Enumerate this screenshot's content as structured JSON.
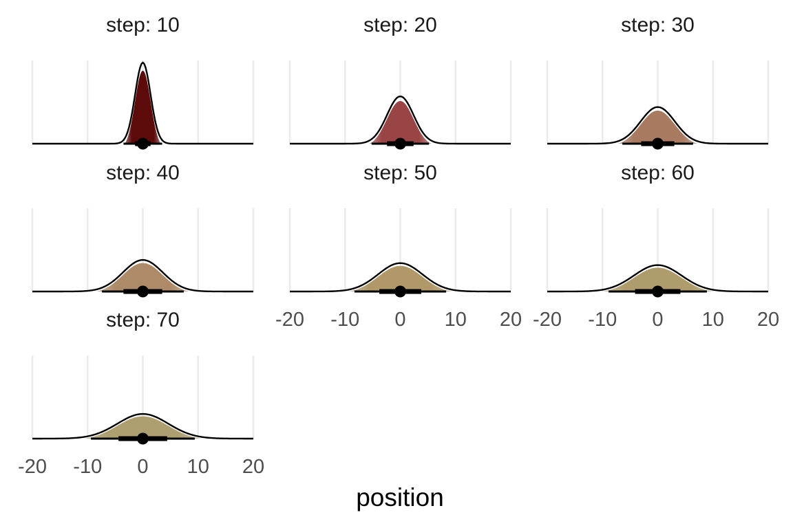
{
  "chart_data": {
    "type": "area",
    "title": "",
    "xlabel": "position",
    "ylabel": "",
    "xlim": [
      -20,
      20
    ],
    "x_ticks": [
      "-20",
      "-10",
      "0",
      "10",
      "20"
    ],
    "grid": true,
    "panels": [
      {
        "title": "step: 10",
        "step": 10,
        "mean": 0,
        "sd": 1.4,
        "interval_66": [
          -1.4,
          1.4
        ],
        "interval_95": [
          -3.5,
          3.5
        ],
        "fill_color": "#5c0a0a"
      },
      {
        "title": "step: 20",
        "step": 20,
        "mean": 0,
        "sd": 2.4,
        "interval_66": [
          -2.4,
          2.4
        ],
        "interval_95": [
          -5.2,
          5.2
        ],
        "fill_color": "#9a4545"
      },
      {
        "title": "step: 30",
        "step": 30,
        "mean": 0,
        "sd": 3.1,
        "interval_66": [
          -3.0,
          3.0
        ],
        "interval_95": [
          -6.4,
          6.4
        ],
        "fill_color": "#a87a60"
      },
      {
        "title": "step: 40",
        "step": 40,
        "mean": 0,
        "sd": 3.6,
        "interval_66": [
          -3.5,
          3.5
        ],
        "interval_95": [
          -7.4,
          7.4
        ],
        "fill_color": "#ad8a68"
      },
      {
        "title": "step: 50",
        "step": 50,
        "mean": 0,
        "sd": 4.0,
        "interval_66": [
          -3.8,
          3.8
        ],
        "interval_95": [
          -8.3,
          8.3
        ],
        "fill_color": "#b09868"
      },
      {
        "title": "step: 60",
        "step": 60,
        "mean": 0,
        "sd": 4.3,
        "interval_66": [
          -4.1,
          4.1
        ],
        "interval_95": [
          -8.9,
          8.9
        ],
        "fill_color": "#ae9c6c"
      },
      {
        "title": "step: 70",
        "step": 70,
        "mean": 0,
        "sd": 4.6,
        "interval_66": [
          -4.4,
          4.4
        ],
        "interval_95": [
          -9.4,
          9.4
        ],
        "fill_color": "#ad9f70"
      }
    ]
  }
}
